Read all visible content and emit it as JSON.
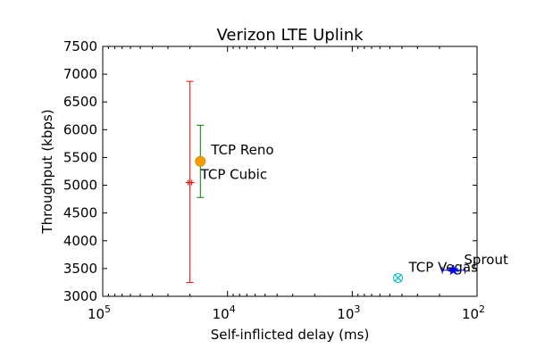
{
  "chart_data": {
    "type": "scatter",
    "title": "Verizon LTE Uplink",
    "xlabel": "Self-inflicted delay (ms)",
    "ylabel": "Throughput (kbps)",
    "xscale": "log",
    "x_reversed": true,
    "xlim": [
      100000,
      100
    ],
    "ylim": [
      3000,
      7500
    ],
    "x_ticks": [
      {
        "value": 100000,
        "base": "10",
        "exp": "5"
      },
      {
        "value": 10000,
        "base": "10",
        "exp": "4"
      },
      {
        "value": 1000,
        "base": "10",
        "exp": "3"
      },
      {
        "value": 100,
        "base": "10",
        "exp": "2"
      }
    ],
    "y_ticks": [
      {
        "value": 3000,
        "label": "3000"
      },
      {
        "value": 3500,
        "label": "3500"
      },
      {
        "value": 4000,
        "label": "4000"
      },
      {
        "value": 4500,
        "label": "4500"
      },
      {
        "value": 5000,
        "label": "5000"
      },
      {
        "value": 5500,
        "label": "5500"
      },
      {
        "value": 6000,
        "label": "6000"
      },
      {
        "value": 6500,
        "label": "6500"
      },
      {
        "value": 7000,
        "label": "7000"
      },
      {
        "value": 7500,
        "label": "7500"
      }
    ],
    "grid": false,
    "points": [
      {
        "label": "TCP Cubic",
        "x": 20000,
        "y": 5050,
        "y_err": [
          3250,
          6870
        ],
        "marker": "plus",
        "color": "#ff0000"
      },
      {
        "label": "TCP Reno",
        "x": 16500,
        "y": 5430,
        "y_err": [
          4780,
          6080
        ],
        "marker": "circle",
        "color": "#ff9900",
        "err_color": "#008000"
      },
      {
        "label": "TCP Vegas",
        "x": 430,
        "y": 3330,
        "marker": "x-circle",
        "color": "#00bfbf"
      },
      {
        "label": "Sprout",
        "x": 155,
        "y": 3470,
        "x_err": [
          190,
          125
        ],
        "marker": "star",
        "color": "#0000ff"
      }
    ]
  }
}
